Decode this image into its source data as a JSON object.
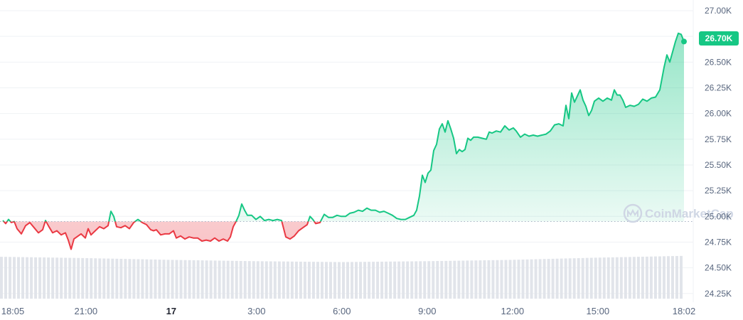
{
  "chart_data": {
    "type": "line",
    "baseline": 24950,
    "y_ticks": [
      "27.00K",
      "26.75K",
      "26.50K",
      "26.25K",
      "26.00K",
      "25.75K",
      "25.50K",
      "25.25K",
      "25.00K",
      "24.75K",
      "24.50K",
      "24.25K"
    ],
    "y_tick_values": [
      27000,
      26750,
      26500,
      26250,
      26000,
      25750,
      25500,
      25250,
      25000,
      24750,
      24500,
      24250
    ],
    "ylim": [
      24000,
      27100
    ],
    "x_ticks": [
      {
        "label": "18:05",
        "hour": 0
      },
      {
        "label": "21:00",
        "hour": 2.92
      },
      {
        "label": "17",
        "hour": 5.92,
        "bold": true
      },
      {
        "label": "3:00",
        "hour": 8.92
      },
      {
        "label": "6:00",
        "hour": 11.92
      },
      {
        "label": "9:00",
        "hour": 14.92
      },
      {
        "label": "12:00",
        "hour": 17.92
      },
      {
        "label": "15:00",
        "hour": 20.92
      },
      {
        "label": "18:02",
        "hour": 23.95
      }
    ],
    "xlim": [
      0,
      23.95
    ],
    "current_price_label": "26.70K",
    "up_color": "#16c784",
    "down_color": "#ea3943",
    "series": [
      {
        "points": [
          [
            0.0,
            24960
          ],
          [
            0.1,
            24930
          ],
          [
            0.2,
            24970
          ],
          [
            0.3,
            24940
          ],
          [
            0.4,
            24950
          ],
          [
            0.5,
            24880
          ],
          [
            0.65,
            24830
          ],
          [
            0.8,
            24910
          ],
          [
            0.95,
            24940
          ],
          [
            1.1,
            24890
          ],
          [
            1.25,
            24840
          ],
          [
            1.4,
            24870
          ],
          [
            1.5,
            24960
          ],
          [
            1.62,
            24900
          ],
          [
            1.75,
            24840
          ],
          [
            1.9,
            24860
          ],
          [
            2.05,
            24820
          ],
          [
            2.2,
            24840
          ],
          [
            2.3,
            24770
          ],
          [
            2.4,
            24680
          ],
          [
            2.5,
            24780
          ],
          [
            2.6,
            24800
          ],
          [
            2.75,
            24830
          ],
          [
            2.9,
            24790
          ],
          [
            3.0,
            24880
          ],
          [
            3.1,
            24820
          ],
          [
            3.25,
            24860
          ],
          [
            3.4,
            24900
          ],
          [
            3.55,
            24880
          ],
          [
            3.7,
            24910
          ],
          [
            3.8,
            25050
          ],
          [
            3.9,
            25000
          ],
          [
            4.0,
            24900
          ],
          [
            4.15,
            24890
          ],
          [
            4.3,
            24910
          ],
          [
            4.45,
            24880
          ],
          [
            4.6,
            24940
          ],
          [
            4.75,
            24970
          ],
          [
            4.9,
            24940
          ],
          [
            5.05,
            24920
          ],
          [
            5.2,
            24870
          ],
          [
            5.3,
            24860
          ],
          [
            5.4,
            24870
          ],
          [
            5.55,
            24820
          ],
          [
            5.7,
            24830
          ],
          [
            5.85,
            24830
          ],
          [
            6.0,
            24860
          ],
          [
            6.1,
            24790
          ],
          [
            6.25,
            24810
          ],
          [
            6.4,
            24780
          ],
          [
            6.55,
            24800
          ],
          [
            6.7,
            24790
          ],
          [
            6.85,
            24790
          ],
          [
            7.0,
            24760
          ],
          [
            7.15,
            24770
          ],
          [
            7.3,
            24760
          ],
          [
            7.45,
            24790
          ],
          [
            7.6,
            24760
          ],
          [
            7.75,
            24780
          ],
          [
            7.9,
            24760
          ],
          [
            8.0,
            24800
          ],
          [
            8.1,
            24900
          ],
          [
            8.2,
            24950
          ],
          [
            8.3,
            25010
          ],
          [
            8.4,
            25120
          ],
          [
            8.5,
            25060
          ],
          [
            8.6,
            25010
          ],
          [
            8.75,
            25010
          ],
          [
            8.9,
            24970
          ],
          [
            9.05,
            25000
          ],
          [
            9.2,
            24960
          ],
          [
            9.35,
            24970
          ],
          [
            9.5,
            24960
          ],
          [
            9.65,
            24970
          ],
          [
            9.8,
            24960
          ],
          [
            9.95,
            24800
          ],
          [
            10.1,
            24780
          ],
          [
            10.25,
            24810
          ],
          [
            10.4,
            24860
          ],
          [
            10.55,
            24890
          ],
          [
            10.7,
            24920
          ],
          [
            10.8,
            25000
          ],
          [
            10.9,
            24970
          ],
          [
            11.0,
            24930
          ],
          [
            11.15,
            24940
          ],
          [
            11.3,
            25020
          ],
          [
            11.45,
            24990
          ],
          [
            11.6,
            24990
          ],
          [
            11.75,
            25010
          ],
          [
            11.9,
            25000
          ],
          [
            12.05,
            25000
          ],
          [
            12.2,
            25030
          ],
          [
            12.35,
            25040
          ],
          [
            12.5,
            25060
          ],
          [
            12.65,
            25050
          ],
          [
            12.8,
            25080
          ],
          [
            12.95,
            25060
          ],
          [
            13.1,
            25060
          ],
          [
            13.25,
            25040
          ],
          [
            13.4,
            25050
          ],
          [
            13.55,
            25030
          ],
          [
            13.7,
            25010
          ],
          [
            13.85,
            24980
          ],
          [
            14.0,
            24970
          ],
          [
            14.15,
            24970
          ],
          [
            14.3,
            24990
          ],
          [
            14.45,
            25010
          ],
          [
            14.55,
            25060
          ],
          [
            14.65,
            25200
          ],
          [
            14.75,
            25400
          ],
          [
            14.85,
            25330
          ],
          [
            14.95,
            25420
          ],
          [
            15.05,
            25450
          ],
          [
            15.15,
            25640
          ],
          [
            15.25,
            25700
          ],
          [
            15.35,
            25850
          ],
          [
            15.45,
            25900
          ],
          [
            15.55,
            25820
          ],
          [
            15.65,
            25930
          ],
          [
            15.75,
            25850
          ],
          [
            15.85,
            25760
          ],
          [
            15.95,
            25610
          ],
          [
            16.05,
            25650
          ],
          [
            16.15,
            25630
          ],
          [
            16.25,
            25650
          ],
          [
            16.35,
            25760
          ],
          [
            16.45,
            25740
          ],
          [
            16.55,
            25770
          ],
          [
            16.7,
            25770
          ],
          [
            16.85,
            25760
          ],
          [
            17.0,
            25750
          ],
          [
            17.1,
            25820
          ],
          [
            17.2,
            25810
          ],
          [
            17.35,
            25830
          ],
          [
            17.5,
            25820
          ],
          [
            17.65,
            25880
          ],
          [
            17.8,
            25840
          ],
          [
            17.95,
            25860
          ],
          [
            18.05,
            25830
          ],
          [
            18.2,
            25770
          ],
          [
            18.35,
            25800
          ],
          [
            18.5,
            25780
          ],
          [
            18.65,
            25790
          ],
          [
            18.8,
            25780
          ],
          [
            18.95,
            25790
          ],
          [
            19.1,
            25800
          ],
          [
            19.25,
            25830
          ],
          [
            19.4,
            25890
          ],
          [
            19.55,
            25900
          ],
          [
            19.7,
            25880
          ],
          [
            19.8,
            26080
          ],
          [
            19.9,
            25950
          ],
          [
            20.0,
            26200
          ],
          [
            20.1,
            26110
          ],
          [
            20.2,
            26170
          ],
          [
            20.3,
            26230
          ],
          [
            20.4,
            26130
          ],
          [
            20.5,
            26070
          ],
          [
            20.6,
            25980
          ],
          [
            20.7,
            26030
          ],
          [
            20.8,
            26120
          ],
          [
            20.95,
            26150
          ],
          [
            21.1,
            26120
          ],
          [
            21.25,
            26150
          ],
          [
            21.4,
            26130
          ],
          [
            21.5,
            26230
          ],
          [
            21.6,
            26180
          ],
          [
            21.7,
            26180
          ],
          [
            21.8,
            26130
          ],
          [
            21.9,
            26060
          ],
          [
            22.05,
            26080
          ],
          [
            22.2,
            26070
          ],
          [
            22.35,
            26090
          ],
          [
            22.5,
            26140
          ],
          [
            22.65,
            26120
          ],
          [
            22.8,
            26150
          ],
          [
            22.95,
            26160
          ],
          [
            23.1,
            26230
          ],
          [
            23.25,
            26450
          ],
          [
            23.35,
            26570
          ],
          [
            23.45,
            26500
          ],
          [
            23.55,
            26600
          ],
          [
            23.65,
            26700
          ],
          [
            23.75,
            26780
          ],
          [
            23.85,
            26770
          ],
          [
            23.95,
            26700
          ]
        ]
      }
    ],
    "volume": {
      "bar_count": 160,
      "levels": [
        0.95,
        0.92,
        0.88,
        0.85,
        0.83,
        0.85,
        0.88,
        0.93,
        0.97
      ]
    }
  },
  "watermark": {
    "text": "CoinMarketCap"
  }
}
